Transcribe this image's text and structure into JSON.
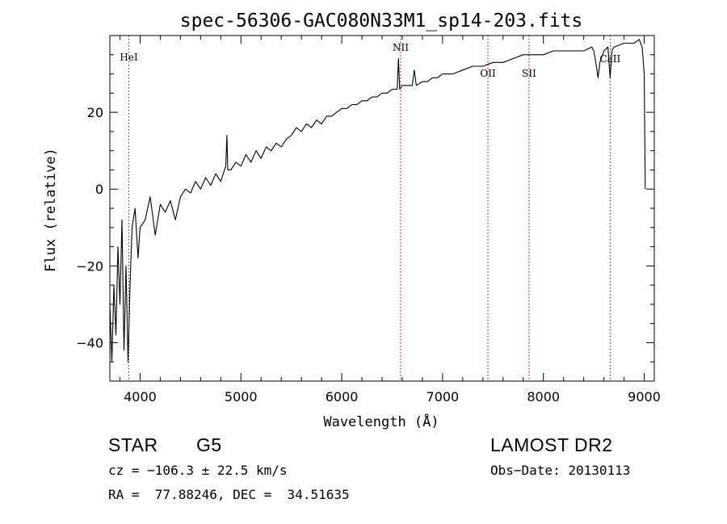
{
  "chart_data": {
    "type": "line",
    "title": "spec-56306-GAC080N33M1_sp14-203.fits",
    "xlabel": "Wavelength (Å)",
    "ylabel": "Flux (relative)",
    "xlim": [
      3700,
      9100
    ],
    "ylim": [
      -50,
      40
    ],
    "xticks": [
      4000,
      5000,
      6000,
      7000,
      8000,
      9000
    ],
    "yticks": [
      -40,
      -20,
      0,
      20
    ],
    "grid": false,
    "series": [
      {
        "color": "#000000",
        "x": [
          3700,
          3720,
          3740,
          3760,
          3780,
          3800,
          3820,
          3840,
          3860,
          3880,
          3900,
          3920,
          3950,
          3980,
          4000,
          4050,
          4100,
          4150,
          4200,
          4250,
          4300,
          4350,
          4400,
          4450,
          4500,
          4550,
          4600,
          4650,
          4700,
          4750,
          4800,
          4850,
          4861,
          4870,
          4900,
          4950,
          5000,
          5050,
          5100,
          5150,
          5200,
          5250,
          5300,
          5350,
          5400,
          5450,
          5500,
          5550,
          5600,
          5650,
          5700,
          5750,
          5800,
          5850,
          5900,
          5950,
          6000,
          6050,
          6100,
          6150,
          6200,
          6250,
          6300,
          6350,
          6400,
          6450,
          6500,
          6550,
          6563,
          6575,
          6600,
          6650,
          6700,
          6720,
          6740,
          6800,
          6850,
          6900,
          6950,
          7000,
          7100,
          7200,
          7300,
          7400,
          7500,
          7600,
          7700,
          7800,
          7900,
          8000,
          8100,
          8200,
          8300,
          8400,
          8480,
          8500,
          8520,
          8542,
          8560,
          8600,
          8640,
          8662,
          8680,
          8700,
          8800,
          8900,
          8950,
          8980,
          9000,
          9010
        ],
        "y": [
          -30,
          -45,
          -25,
          -38,
          -15,
          -30,
          -8,
          -42,
          -20,
          -45,
          -25,
          -10,
          -5,
          -18,
          -10,
          -8,
          -2,
          -12,
          -4,
          -6,
          -3,
          -8,
          -2,
          0,
          -1,
          2,
          0,
          3,
          1,
          4,
          2,
          6,
          14,
          5,
          5,
          7,
          6,
          9,
          7,
          10,
          8,
          11,
          10,
          12,
          11,
          13,
          14,
          16,
          15,
          17,
          16,
          18,
          17,
          19,
          19,
          20,
          21,
          21,
          22,
          22,
          23,
          23,
          24,
          24,
          25,
          25,
          26,
          26,
          34,
          26,
          27,
          27,
          27,
          31,
          27,
          28,
          28,
          29,
          29,
          30,
          30,
          31,
          32,
          32,
          33,
          33,
          34,
          35,
          35,
          35,
          36,
          36,
          36,
          36,
          37,
          36,
          33,
          29,
          33,
          36,
          37,
          29,
          36,
          37,
          38,
          38,
          39,
          37,
          30,
          0
        ]
      }
    ],
    "line_markers": [
      {
        "label": "HeI",
        "x": 3889
      },
      {
        "label": "NII",
        "x": 6584
      },
      {
        "label": "OII",
        "x": 7450
      },
      {
        "label": "SII",
        "x": 7858
      },
      {
        "label": "CaII",
        "x": 8662
      }
    ]
  },
  "info": {
    "object_class": "STAR",
    "subclass": "G5",
    "survey": "LAMOST DR2",
    "redshift_line": "cz = −106.3 ± 22.5 km/s",
    "obs_date_line": "Obs−Date: 20130113",
    "coords_line": "RA =  77.88246, DEC =  34.51635"
  }
}
